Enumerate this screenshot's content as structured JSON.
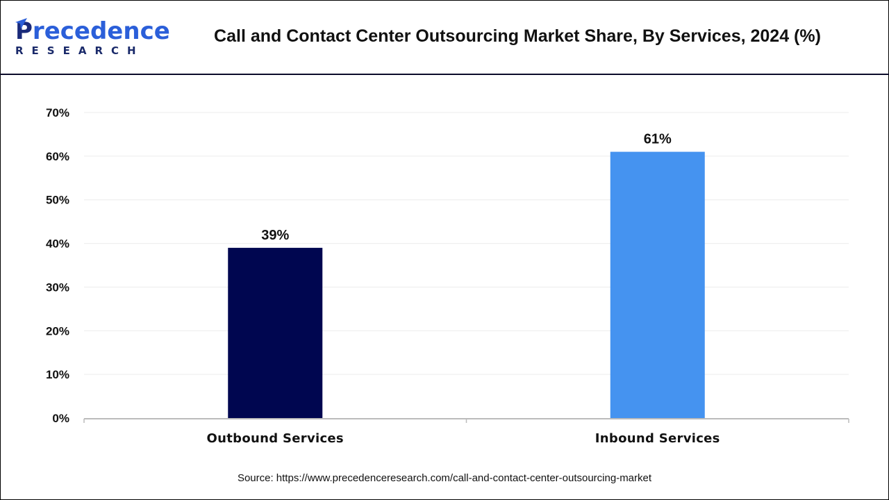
{
  "logo": {
    "text_main": "Precedence",
    "text_sub": "RESEARCH"
  },
  "header": {
    "title": "Call and Contact Center Outsourcing Market Share, By Services, 2024 (%)"
  },
  "chart_data": {
    "type": "bar",
    "title": "Call and Contact Center Outsourcing Market Share, By Services, 2024 (%)",
    "categories": [
      "Outbound Services",
      "Inbound Services"
    ],
    "values": [
      39,
      61
    ],
    "data_labels": [
      "39%",
      "61%"
    ],
    "colors": [
      "#000650",
      "#4593f0"
    ],
    "ylim": [
      0,
      70
    ],
    "yticks": [
      0,
      10,
      20,
      30,
      40,
      50,
      60,
      70
    ],
    "ytick_labels": [
      "0%",
      "10%",
      "20%",
      "30%",
      "40%",
      "50%",
      "60%",
      "70%"
    ],
    "grid": true,
    "xlabel": "",
    "ylabel": ""
  },
  "footer": {
    "source": "Source: https://www.precedenceresearch.com/call-and-contact-center-outsourcing-market"
  }
}
